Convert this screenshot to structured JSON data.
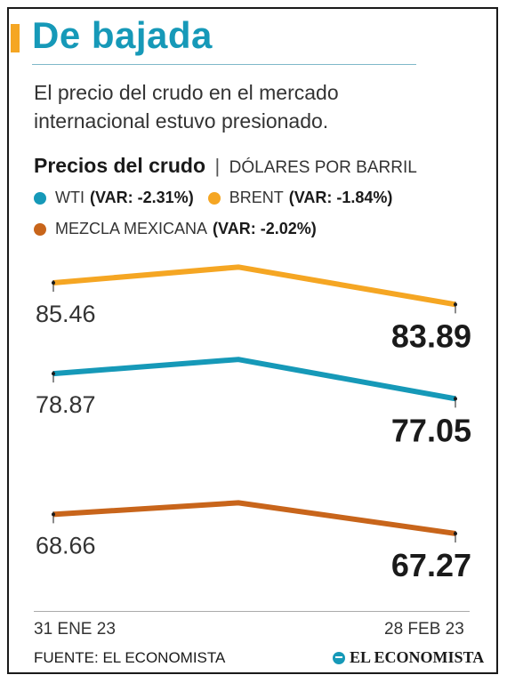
{
  "header": {
    "title": "De bajada",
    "subtitle": "El precio del crudo en el mercado internacional estuvo presionado."
  },
  "chart_heading": {
    "title": "Precios del crudo",
    "separator": "|",
    "unit": "DÓLARES POR BARRIL"
  },
  "legend": [
    {
      "name": "WTI",
      "variation": "(VAR: -2.31%)",
      "color": "#1699b8"
    },
    {
      "name": "BRENT",
      "variation": "(VAR: -1.84%)",
      "color": "#f5a623"
    },
    {
      "name": "MEZCLA MEXICANA",
      "variation": "(VAR: -2.02%)",
      "color": "#c8651b"
    }
  ],
  "chart_data": {
    "type": "line",
    "x": [
      "31 ENE 23",
      "",
      "28 FEB 23"
    ],
    "series": [
      {
        "name": "BRENT",
        "color": "#f5a623",
        "values": [
          85.46,
          86.6,
          83.89
        ],
        "start_label": "85.46",
        "end_label": "83.89"
      },
      {
        "name": "WTI",
        "color": "#1699b8",
        "values": [
          78.87,
          79.9,
          77.05
        ],
        "start_label": "78.87",
        "end_label": "77.05"
      },
      {
        "name": "MEZCLA MEXICANA",
        "color": "#c8651b",
        "values": [
          68.66,
          69.5,
          67.27
        ],
        "start_label": "68.66",
        "end_label": "67.27"
      }
    ]
  },
  "footer": {
    "date_start": "31 ENE 23",
    "date_end": "28 FEB 23",
    "source": "FUENTE: EL ECONOMISTA",
    "brand": "EL ECONOMISTA"
  }
}
